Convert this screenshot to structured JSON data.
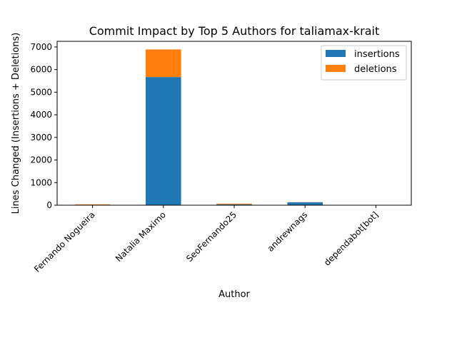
{
  "chart_data": {
    "type": "bar",
    "stacked": true,
    "title": "Commit Impact by Top 5 Authors for taliamax-krait",
    "xlabel": "Author",
    "ylabel": "Lines Changed (Insertions + Deletions)",
    "categories": [
      "Fernando Nogueira",
      "Natalia Maximo",
      "SeoFernando25",
      "andrewnags",
      "dependabot[bot]"
    ],
    "series": [
      {
        "name": "insertions",
        "color": "#1f77b4",
        "values": [
          20,
          5670,
          40,
          130,
          2
        ]
      },
      {
        "name": "deletions",
        "color": "#ff7f0e",
        "values": [
          20,
          1220,
          30,
          5,
          2
        ]
      }
    ],
    "ylim": [
      0,
      7250
    ],
    "yticks": [
      0,
      1000,
      2000,
      3000,
      4000,
      5000,
      6000,
      7000
    ],
    "legend_position": "top-right",
    "grid": false
  }
}
